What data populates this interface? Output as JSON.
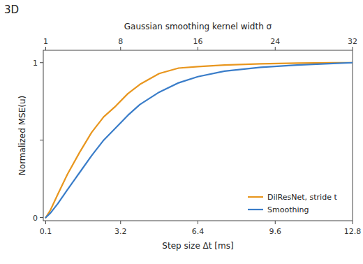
{
  "chart_data": {
    "type": "line",
    "title": "3D",
    "xlabel": "Step size Δt [ms]",
    "x2label": "Gaussian smoothing kernel width σ",
    "ylabel": "Normalized MSE(u)",
    "xlim": [
      0.0,
      12.8
    ],
    "ylim": [
      -0.02,
      1.08
    ],
    "xticks": [
      0.1,
      3.2,
      6.4,
      9.6,
      12.8
    ],
    "x2lim": [
      0.0,
      12.8
    ],
    "x2ticks": [
      {
        "value": 0.1,
        "label": "1"
      },
      {
        "value": 3.2,
        "label": "8"
      },
      {
        "value": 6.4,
        "label": "16"
      },
      {
        "value": 9.6,
        "label": "24"
      },
      {
        "value": 12.8,
        "label": "32"
      }
    ],
    "yticks": [
      0,
      {
        "value": 0.5,
        "label": null
      },
      1
    ],
    "x": [
      0.1,
      0.3,
      0.6,
      1.0,
      1.5,
      2.0,
      2.5,
      3.0,
      3.5,
      4.0,
      4.8,
      5.6,
      6.4,
      7.5,
      9.0,
      10.5,
      12.0,
      12.8
    ],
    "series": [
      {
        "name": "DilResNet, stride t",
        "color": "#E8961E",
        "values": [
          0.0,
          0.05,
          0.15,
          0.28,
          0.42,
          0.55,
          0.65,
          0.72,
          0.8,
          0.86,
          0.93,
          0.965,
          0.975,
          0.985,
          0.993,
          0.997,
          0.999,
          1.0
        ]
      },
      {
        "name": "Smoothing",
        "color": "#3A7DC9",
        "values": [
          0.0,
          0.03,
          0.09,
          0.18,
          0.29,
          0.4,
          0.5,
          0.58,
          0.66,
          0.73,
          0.81,
          0.87,
          0.91,
          0.945,
          0.97,
          0.985,
          0.995,
          1.0
        ]
      }
    ],
    "legend": "lower right",
    "grid": false
  }
}
